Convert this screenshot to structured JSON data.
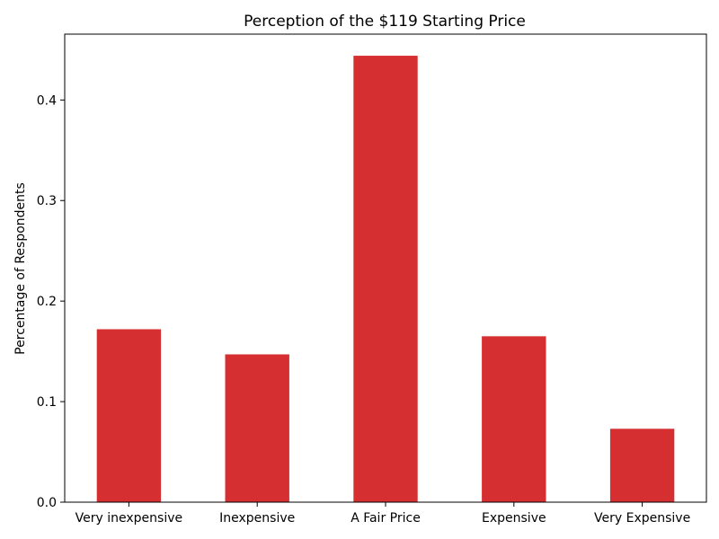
{
  "chart_data": {
    "type": "bar",
    "title": "Perception of the $119 Starting Price",
    "xlabel": "",
    "ylabel": "Percentage of Respondents",
    "categories": [
      "Very inexpensive",
      "Inexpensive",
      "A Fair Price",
      "Expensive",
      "Very Expensive"
    ],
    "values": [
      0.172,
      0.147,
      0.444,
      0.165,
      0.073
    ],
    "ylim": [
      0,
      0.4655
    ],
    "yticks": [
      0.0,
      0.1,
      0.2,
      0.3,
      0.4
    ],
    "ytick_labels": [
      "0.0",
      "0.1",
      "0.2",
      "0.3",
      "0.4"
    ],
    "bar_color": "#d62f31",
    "grid": false,
    "legend": "none"
  }
}
